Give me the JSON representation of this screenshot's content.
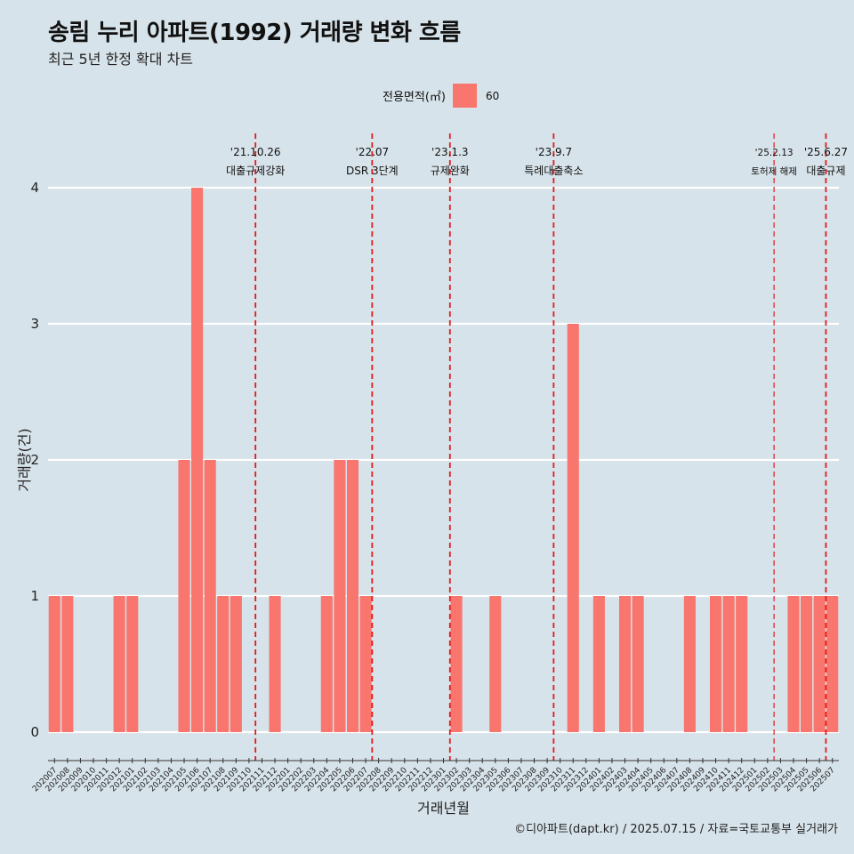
{
  "title": "송림 누리 아파트(1992) 거래량 변화 흐름",
  "subtitle": "최근 5년 한정 확대 차트",
  "legend": {
    "title": "전용면적(㎡)",
    "item": "60",
    "color": "#f8766d"
  },
  "footer": "©디아파트(dapt.kr) / 2025.07.15 / 자료=국토교통부 실거래가",
  "colors": {
    "bar": "#f8766d",
    "background": "#d7e3ea",
    "grid": "#ffffff",
    "vline": "#e31a1c"
  },
  "chart_data": {
    "type": "bar",
    "xlabel": "거래년월",
    "ylabel": "거래량(건)",
    "ylim": [
      0,
      4
    ],
    "yticks": [
      0,
      1,
      2,
      3,
      4
    ],
    "grid": true,
    "legend_position": "top",
    "categories": [
      "202007",
      "202008",
      "202009",
      "202010",
      "202011",
      "202012",
      "202101",
      "202102",
      "202103",
      "202104",
      "202105",
      "202106",
      "202107",
      "202108",
      "202109",
      "202110",
      "202111",
      "202112",
      "202201",
      "202202",
      "202203",
      "202204",
      "202205",
      "202206",
      "202207",
      "202208",
      "202209",
      "202210",
      "202211",
      "202212",
      "202301",
      "202302",
      "202303",
      "202304",
      "202305",
      "202306",
      "202307",
      "202308",
      "202309",
      "202310",
      "202311",
      "202312",
      "202401",
      "202402",
      "202403",
      "202404",
      "202405",
      "202406",
      "202407",
      "202408",
      "202409",
      "202410",
      "202411",
      "202412",
      "202501",
      "202502",
      "202503",
      "202504",
      "202505",
      "202506",
      "202507"
    ],
    "series": [
      {
        "name": "60",
        "values": [
          1,
          1,
          0,
          0,
          0,
          1,
          1,
          0,
          0,
          0,
          2,
          4,
          2,
          1,
          1,
          0,
          0,
          1,
          0,
          0,
          0,
          1,
          2,
          2,
          1,
          0,
          0,
          0,
          0,
          0,
          0,
          1,
          0,
          0,
          1,
          0,
          0,
          0,
          0,
          0,
          3,
          0,
          1,
          0,
          1,
          1,
          0,
          0,
          0,
          1,
          0,
          1,
          1,
          1,
          0,
          0,
          0,
          1,
          1,
          1,
          1
        ]
      }
    ],
    "annotations": [
      {
        "date": "'21.10.26",
        "label": "대출규제강화",
        "at": "202110"
      },
      {
        "date": "'22.07",
        "label": "DSR 3단계",
        "at": "202207"
      },
      {
        "date": "'23.1.3",
        "label": "규제완화",
        "at": "202301"
      },
      {
        "date": "'23.9.7",
        "label": "특례대출축소",
        "at": "202309"
      },
      {
        "date": "'25.2.13",
        "label": "토허제 해제",
        "at": "202502"
      },
      {
        "date": "'25.6.27",
        "label": "대출규제",
        "at": "202506"
      }
    ]
  }
}
